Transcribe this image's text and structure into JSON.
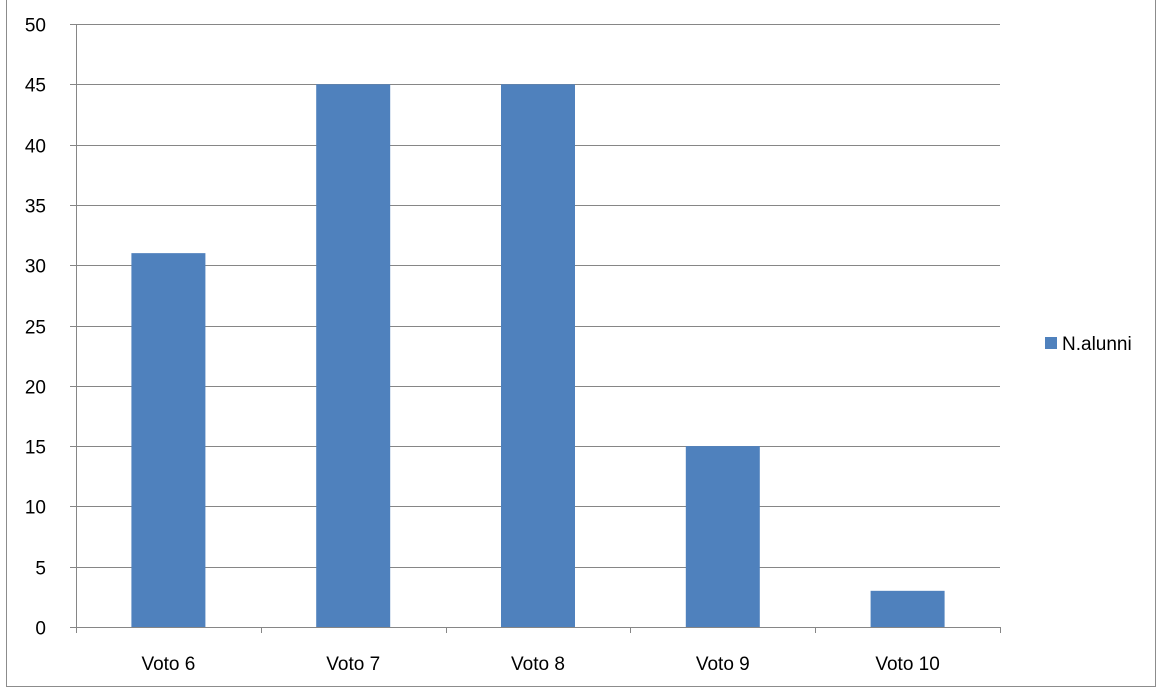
{
  "chart_data": {
    "type": "bar",
    "categories": [
      "Voto 6",
      "Voto 7",
      "Voto 8",
      "Voto 9",
      "Voto 10"
    ],
    "series": [
      {
        "name": "N.alunni",
        "values": [
          31,
          45,
          45,
          15,
          3
        ],
        "color": "#4f81bd"
      }
    ],
    "ylim": [
      0,
      50
    ],
    "yticks": [
      0,
      5,
      10,
      15,
      20,
      25,
      30,
      35,
      40,
      45,
      50
    ],
    "grid": true,
    "legend_position": "right",
    "gridline_color": "#868686"
  }
}
